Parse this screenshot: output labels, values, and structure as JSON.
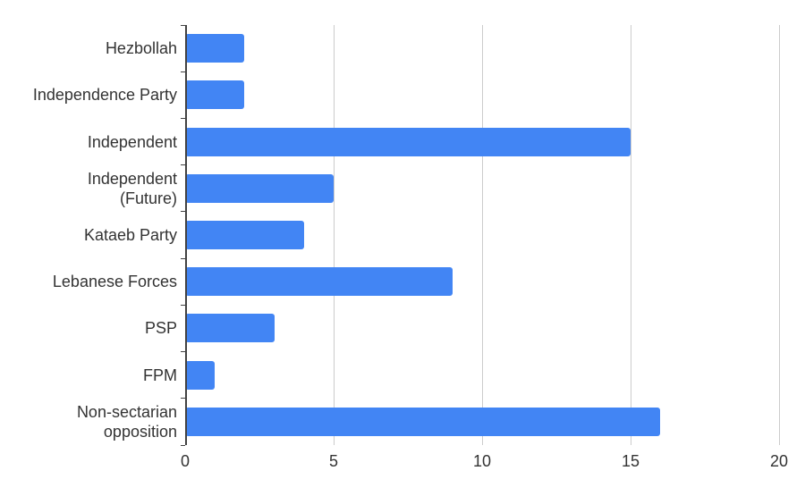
{
  "chart_data": {
    "type": "bar",
    "orientation": "horizontal",
    "title": "",
    "xlabel": "",
    "ylabel": "",
    "categories": [
      "Hezbollah",
      "Independence Party",
      "Independent",
      "Independent (Future)",
      "Kataeb Party",
      "Lebanese Forces",
      "PSP",
      "FPM",
      "Non-sectarian opposition"
    ],
    "category_label_lines": [
      [
        "Hezbollah"
      ],
      [
        "Independence Party"
      ],
      [
        "Independent"
      ],
      [
        "Independent",
        "(Future)"
      ],
      [
        "Kataeb Party"
      ],
      [
        "Lebanese Forces"
      ],
      [
        "PSP"
      ],
      [
        "FPM"
      ],
      [
        "Non-sectarian",
        "opposition"
      ]
    ],
    "values": [
      2,
      2,
      15,
      5,
      4,
      9,
      3,
      1,
      16
    ],
    "xlim": [
      0,
      20
    ],
    "xticks": [
      0,
      5,
      10,
      15,
      20
    ],
    "grid": "vertical-gridlines-on",
    "legend_position": "none"
  },
  "colors": {
    "bar": "#4285f4",
    "gridline": "#cccccc",
    "axis": "#424242",
    "label": "#333333",
    "background": "#ffffff"
  }
}
